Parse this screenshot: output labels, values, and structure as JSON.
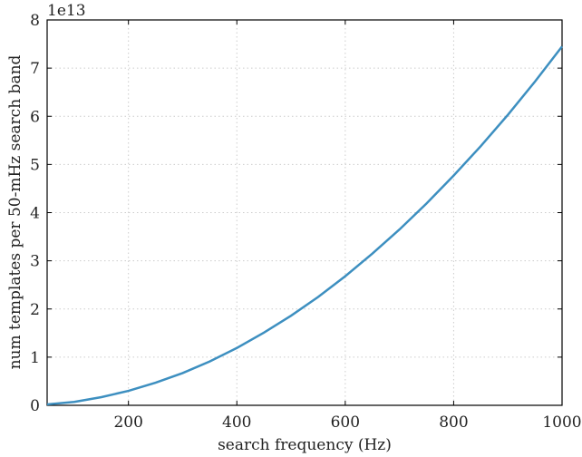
{
  "chart_data": {
    "type": "line",
    "x_label": "search frequency (Hz)",
    "y_label": "num templates per 50-mHz search band",
    "y_offset_label": "1e13",
    "x": [
      50,
      100,
      150,
      200,
      250,
      300,
      350,
      400,
      450,
      500,
      550,
      600,
      650,
      700,
      750,
      800,
      850,
      900,
      950,
      1000
    ],
    "series": [
      {
        "color": "#3d8fc0",
        "values": [
          0.02,
          0.07,
          0.17,
          0.3,
          0.47,
          0.67,
          0.91,
          1.19,
          1.51,
          1.86,
          2.25,
          2.68,
          3.15,
          3.65,
          4.19,
          4.77,
          5.38,
          6.03,
          6.72,
          7.45
        ]
      }
    ],
    "xlim": [
      50,
      1000
    ],
    "xticks": [
      200,
      400,
      600,
      800,
      1000
    ],
    "ylim": [
      0,
      8
    ],
    "yticks": [
      0,
      1,
      2,
      3,
      4,
      5,
      6,
      7,
      8
    ],
    "grid": true
  }
}
